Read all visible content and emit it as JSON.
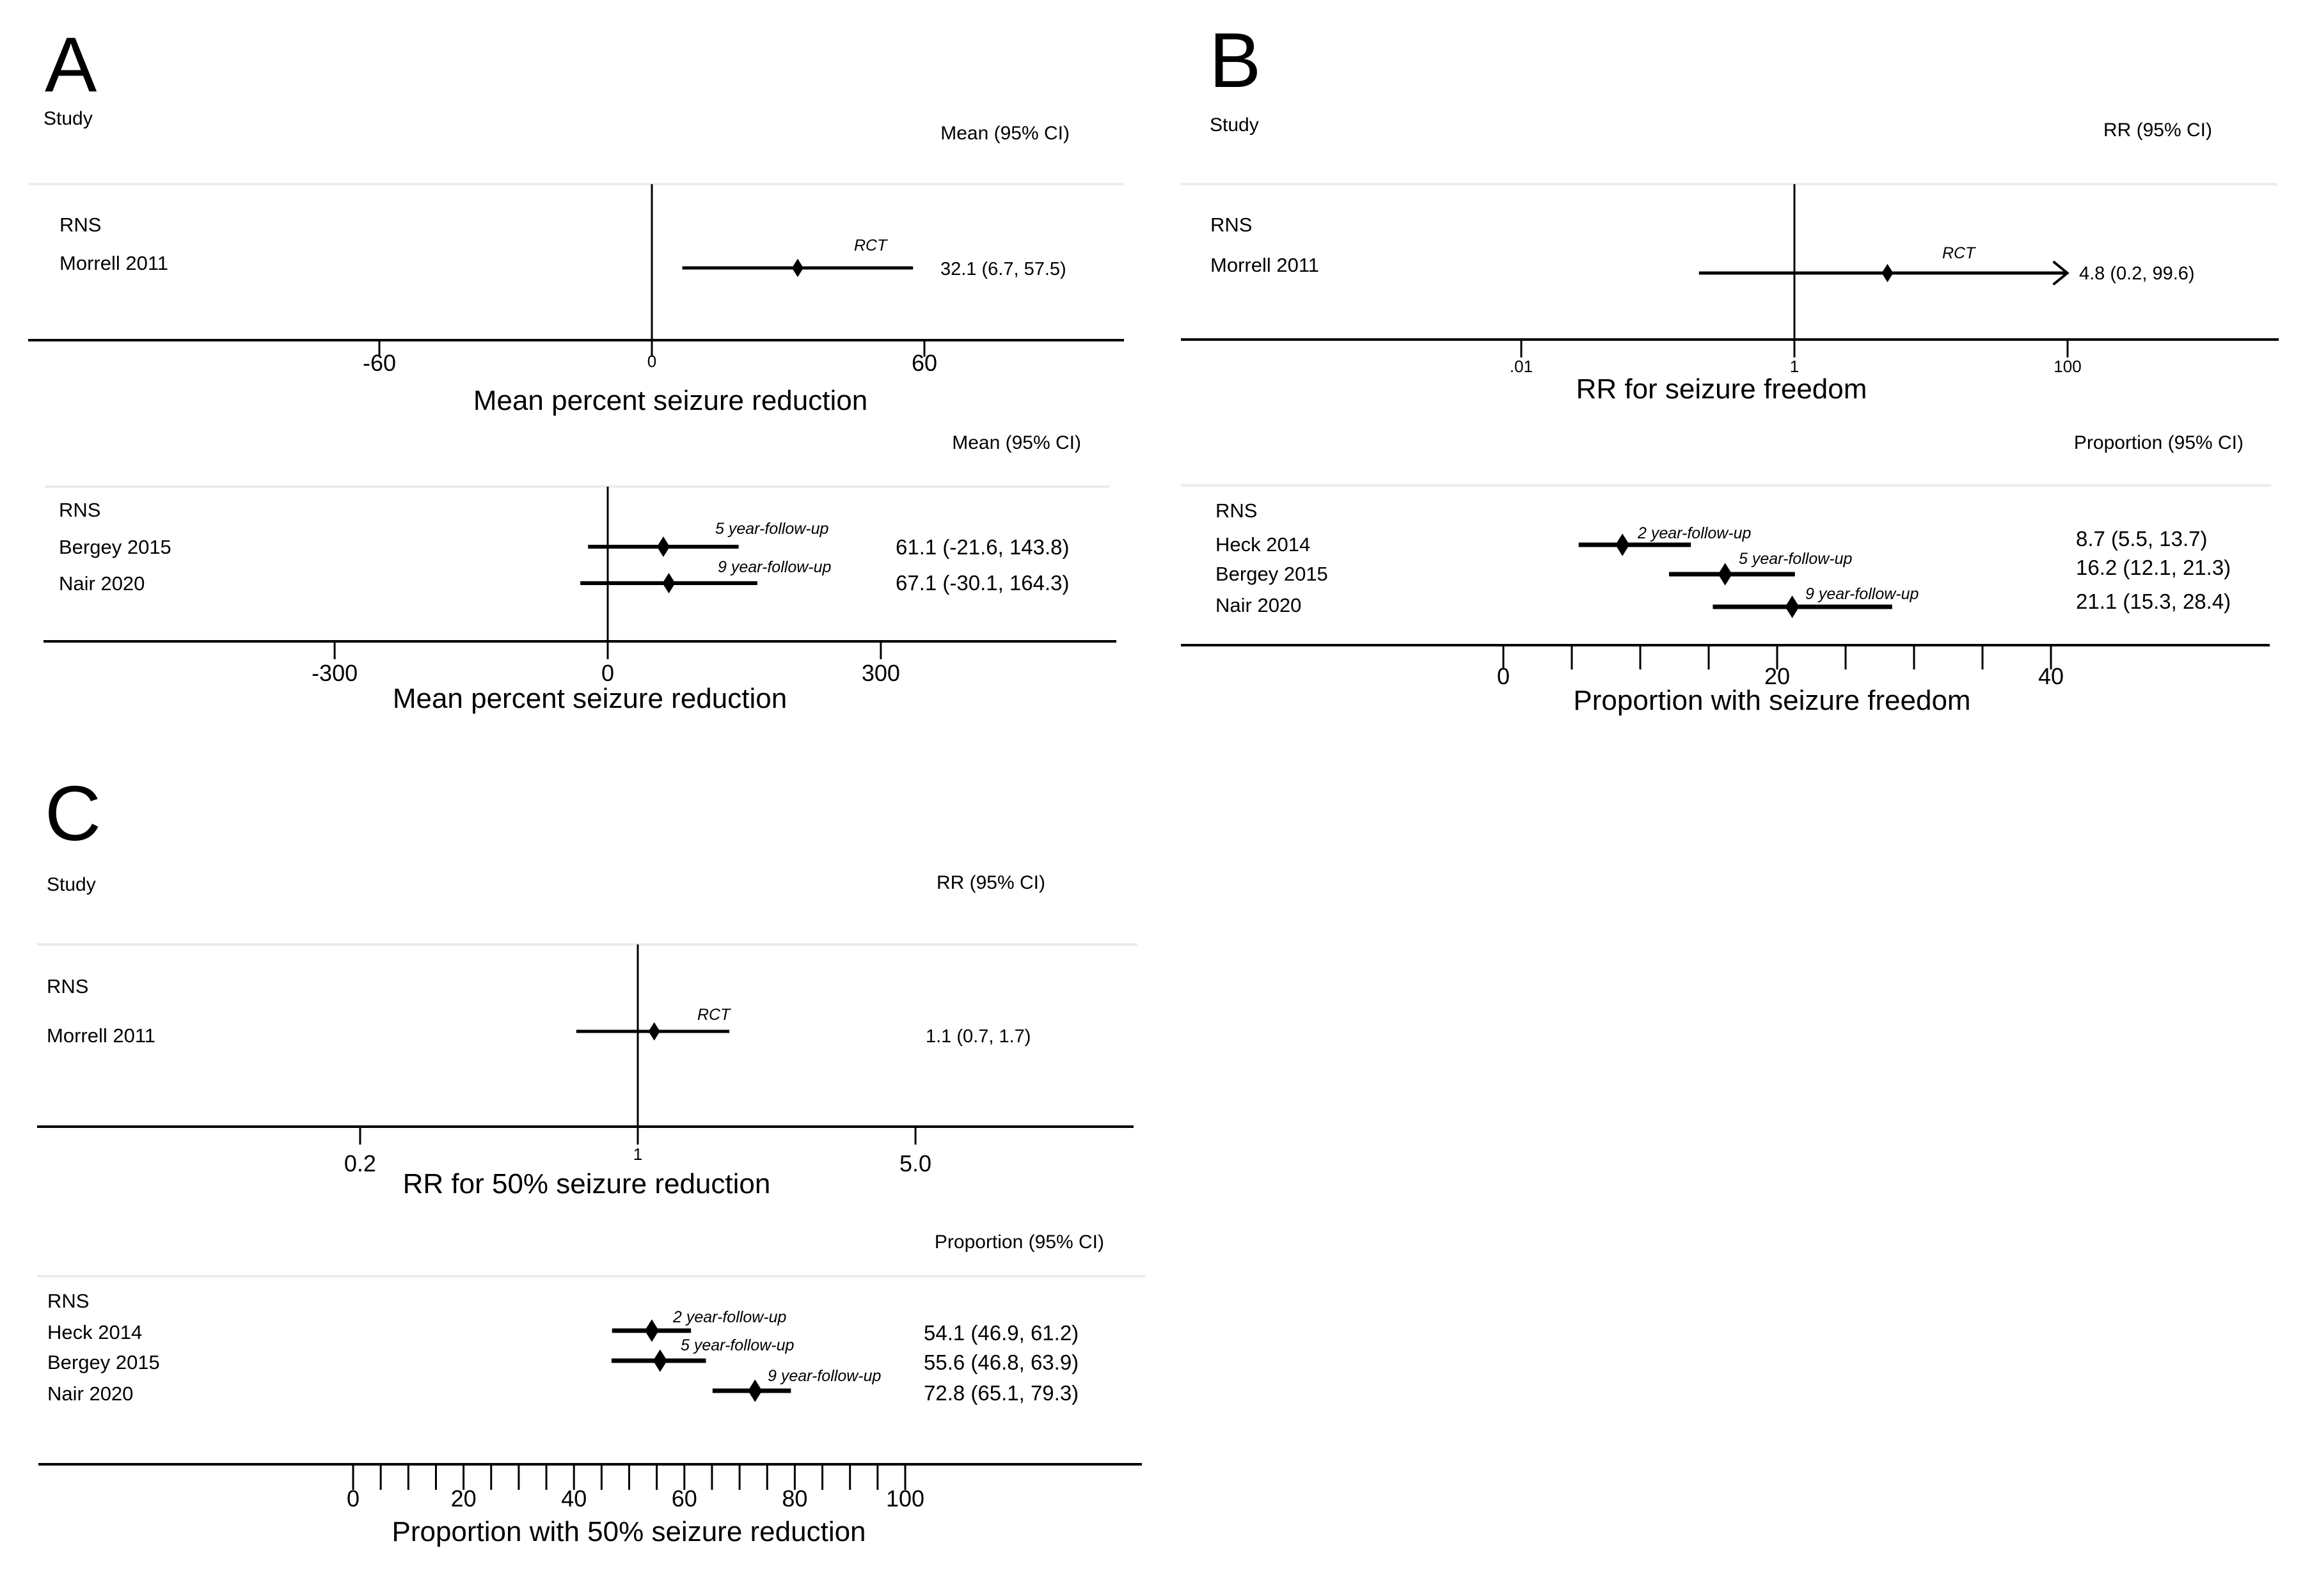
{
  "colors": {
    "ink": "#000000",
    "separator": "#ececec",
    "background": "#ffffff"
  },
  "chart_data": [
    {
      "panel": "A",
      "type": "forest",
      "study_header": "Study",
      "stat_header": "Mean (95% CI)",
      "group": "RNS",
      "xlabel": "Mean percent seizure reduction",
      "scale": "linear",
      "ticks": [
        -60,
        0,
        60
      ],
      "tick_labels": [
        "-60",
        "0",
        "60"
      ],
      "reference_line": 0,
      "rows": [
        {
          "study": "Morrell 2011",
          "estimate": 32.1,
          "lower": 6.7,
          "upper": 57.5,
          "label": "32.1 (6.7, 57.5)",
          "note": "RCT"
        }
      ]
    },
    {
      "panel": "A2",
      "type": "forest",
      "stat_header": "Mean (95% CI)",
      "group": "RNS",
      "xlabel": "Mean percent seizure reduction",
      "scale": "linear",
      "ticks": [
        -300,
        0,
        300
      ],
      "tick_labels": [
        "-300",
        "0",
        "300"
      ],
      "reference_line": 0,
      "rows": [
        {
          "study": "Bergey 2015",
          "estimate": 61.1,
          "lower": -21.6,
          "upper": 143.8,
          "label": "61.1 (-21.6, 143.8)",
          "note": "5 year-follow-up"
        },
        {
          "study": "Nair 2020",
          "estimate": 67.1,
          "lower": -30.1,
          "upper": 164.3,
          "label": "67.1 (-30.1, 164.3)",
          "note": "9 year-follow-up"
        }
      ]
    },
    {
      "panel": "B",
      "type": "forest",
      "study_header": "Study",
      "stat_header": "RR (95% CI)",
      "group": "RNS",
      "xlabel": "RR for seizure freedom",
      "scale": "log",
      "ticks": [
        0.01,
        1,
        100
      ],
      "tick_labels": [
        ".01",
        "1",
        "100"
      ],
      "reference_line": 1,
      "rows": [
        {
          "study": "Morrell 2011",
          "estimate": 4.8,
          "lower": 0.2,
          "upper": 99.6,
          "label": "4.8 (0.2, 99.6)",
          "note": "RCT",
          "arrow_right": true
        }
      ]
    },
    {
      "panel": "B2",
      "type": "forest",
      "stat_header": "Proportion (95% CI)",
      "group": "RNS",
      "xlabel": "Proportion with seizure freedom",
      "scale": "linear",
      "ticks": [
        0,
        5,
        10,
        15,
        20,
        25,
        30,
        35,
        40
      ],
      "tick_labels": [
        "0",
        "",
        "",
        "",
        "20",
        "",
        "",
        "",
        "40"
      ],
      "rows": [
        {
          "study": "Heck 2014",
          "estimate": 8.7,
          "lower": 5.5,
          "upper": 13.7,
          "label": "8.7 (5.5, 13.7)",
          "note": "2 year-follow-up"
        },
        {
          "study": "Bergey 2015",
          "estimate": 16.2,
          "lower": 12.1,
          "upper": 21.3,
          "label": "16.2 (12.1, 21.3)",
          "note": "5 year-follow-up"
        },
        {
          "study": "Nair 2020",
          "estimate": 21.1,
          "lower": 15.3,
          "upper": 28.4,
          "label": "21.1 (15.3, 28.4)",
          "note": "9 year-follow-up"
        }
      ]
    },
    {
      "panel": "C",
      "type": "forest",
      "study_header": "Study",
      "stat_header": "RR (95% CI)",
      "group": "RNS",
      "xlabel": "RR for 50% seizure reduction",
      "scale": "log",
      "ticks": [
        0.2,
        1,
        5.0
      ],
      "tick_labels": [
        "0.2",
        "1",
        "5.0"
      ],
      "reference_line": 1,
      "rows": [
        {
          "study": "Morrell 2011",
          "estimate": 1.1,
          "lower": 0.7,
          "upper": 1.7,
          "label": "1.1 (0.7, 1.7)",
          "note": "RCT"
        }
      ]
    },
    {
      "panel": "C2",
      "type": "forest",
      "stat_header": "Proportion (95% CI)",
      "group": "RNS",
      "xlabel": "Proportion with 50% seizure reduction",
      "scale": "linear",
      "ticks": [
        0,
        5,
        10,
        15,
        20,
        25,
        30,
        35,
        40,
        45,
        50,
        55,
        60,
        65,
        70,
        75,
        80,
        85,
        90,
        95,
        100
      ],
      "tick_labels": [
        "0",
        "",
        "",
        "",
        "20",
        "",
        "",
        "",
        "40",
        "",
        "",
        "",
        "60",
        "",
        "",
        "",
        "80",
        "",
        "",
        "",
        "100"
      ],
      "rows": [
        {
          "study": "Heck 2014",
          "estimate": 54.1,
          "lower": 46.9,
          "upper": 61.2,
          "label": "54.1 (46.9, 61.2)",
          "note": "2 year-follow-up"
        },
        {
          "study": "Bergey 2015",
          "estimate": 55.6,
          "lower": 46.8,
          "upper": 63.9,
          "label": "55.6 (46.8, 63.9)",
          "note": "5 year-follow-up"
        },
        {
          "study": "Nair 2020",
          "estimate": 72.8,
          "lower": 65.1,
          "upper": 79.3,
          "label": "72.8 (65.1, 79.3)",
          "note": "9 year-follow-up"
        }
      ]
    }
  ],
  "panel_letters": [
    "A",
    "B",
    "C"
  ]
}
